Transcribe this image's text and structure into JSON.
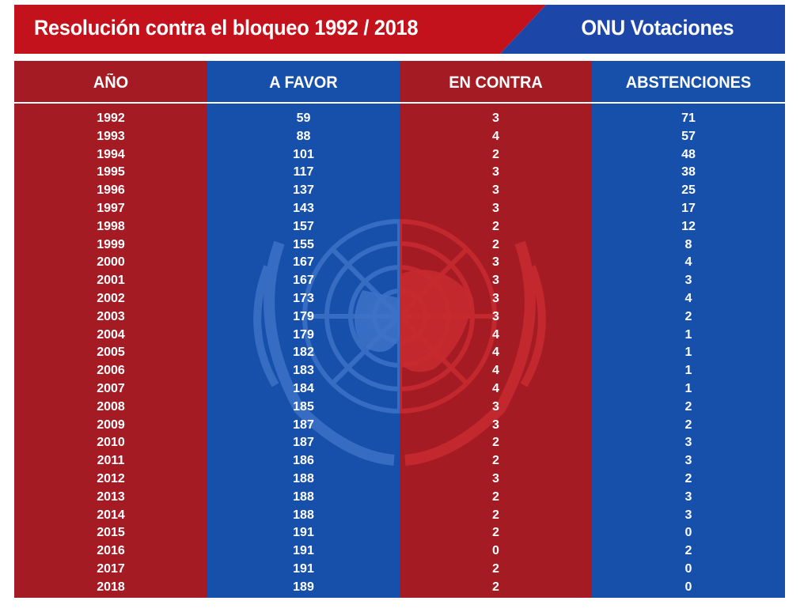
{
  "header": {
    "title": "Resolución contra el bloqueo 1992 / 2018",
    "brand": "ONU Votaciones"
  },
  "colors": {
    "red": "#a51b24",
    "blue": "#1650aa",
    "header_red": "#c4121c",
    "header_blue": "#1c46a8"
  },
  "emblem_icon": "un-emblem-icon",
  "chart_data": {
    "type": "table",
    "columns": [
      "AÑO",
      "A FAVOR",
      "EN CONTRA",
      "ABSTENCIONES"
    ],
    "rows": [
      [
        "1992",
        "59",
        "3",
        "71"
      ],
      [
        "1993",
        "88",
        "4",
        "57"
      ],
      [
        "1994",
        "101",
        "2",
        "48"
      ],
      [
        "1995",
        "117",
        "3",
        "38"
      ],
      [
        "1996",
        "137",
        "3",
        "25"
      ],
      [
        "1997",
        "143",
        "3",
        "17"
      ],
      [
        "1998",
        "157",
        "2",
        "12"
      ],
      [
        "1999",
        "155",
        "2",
        "8"
      ],
      [
        "2000",
        "167",
        "3",
        "4"
      ],
      [
        "2001",
        "167",
        "3",
        "3"
      ],
      [
        "2002",
        "173",
        "3",
        "4"
      ],
      [
        "2003",
        "179",
        "3",
        "2"
      ],
      [
        "2004",
        "179",
        "4",
        "1"
      ],
      [
        "2005",
        "182",
        "4",
        "1"
      ],
      [
        "2006",
        "183",
        "4",
        "1"
      ],
      [
        "2007",
        "184",
        "4",
        "1"
      ],
      [
        "2008",
        "185",
        "3",
        "2"
      ],
      [
        "2009",
        "187",
        "3",
        "2"
      ],
      [
        "2010",
        "187",
        "2",
        "3"
      ],
      [
        "2011",
        "186",
        "2",
        "3"
      ],
      [
        "2012",
        "188",
        "3",
        "2"
      ],
      [
        "2013",
        "188",
        "2",
        "3"
      ],
      [
        "2014",
        "188",
        "2",
        "3"
      ],
      [
        "2015",
        "191",
        "2",
        "0"
      ],
      [
        "2016",
        "191",
        "0",
        "2"
      ],
      [
        "2017",
        "191",
        "2",
        "0"
      ],
      [
        "2018",
        "189",
        "2",
        "0"
      ]
    ]
  }
}
